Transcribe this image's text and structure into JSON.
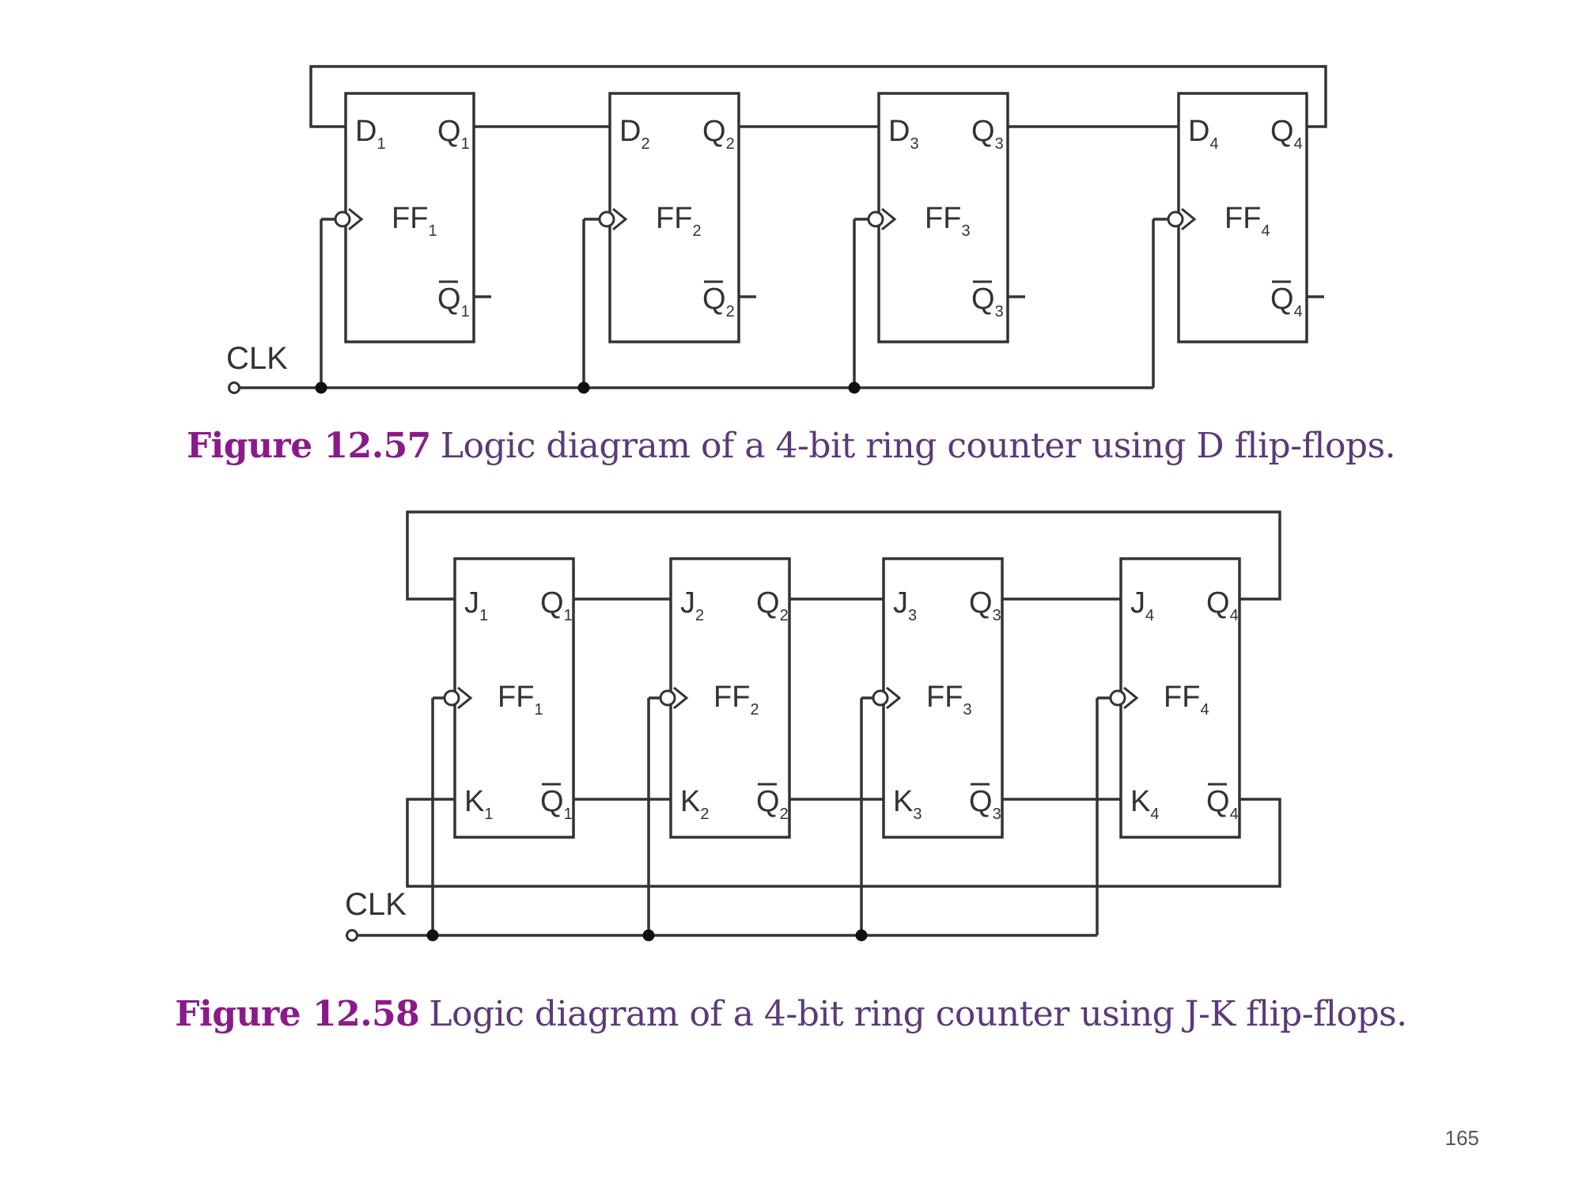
{
  "diagrams": [
    {
      "type": "D",
      "clock_label": "CLK",
      "flip_flops": [
        {
          "name": "FF",
          "n": "1",
          "in1": "D",
          "out": "Q",
          "out_bar": "Q"
        },
        {
          "name": "FF",
          "n": "2",
          "in1": "D",
          "out": "Q",
          "out_bar": "Q"
        },
        {
          "name": "FF",
          "n": "3",
          "in1": "D",
          "out": "Q",
          "out_bar": "Q"
        },
        {
          "name": "FF",
          "n": "4",
          "in1": "D",
          "out": "Q",
          "out_bar": "Q"
        }
      ],
      "caption": {
        "label": "Figure 12.57",
        "text": "Logic diagram of a 4-bit ring counter using D flip-flops."
      }
    },
    {
      "type": "JK",
      "clock_label": "CLK",
      "flip_flops": [
        {
          "name": "FF",
          "n": "1",
          "in1": "J",
          "in2": "K",
          "out": "Q",
          "out_bar": "Q"
        },
        {
          "name": "FF",
          "n": "2",
          "in1": "J",
          "in2": "K",
          "out": "Q",
          "out_bar": "Q"
        },
        {
          "name": "FF",
          "n": "3",
          "in1": "J",
          "in2": "K",
          "out": "Q",
          "out_bar": "Q"
        },
        {
          "name": "FF",
          "n": "4",
          "in1": "J",
          "in2": "K",
          "out": "Q",
          "out_bar": "Q"
        }
      ],
      "caption": {
        "label": "Figure 12.58",
        "text": "Logic diagram of a 4-bit ring counter using J-K flip-flops."
      }
    }
  ],
  "page_number": "165",
  "colors": {
    "line": "#333333",
    "caption_label": "#8a1a8a",
    "caption_text": "#5a3a78",
    "page_number": "#555555"
  }
}
